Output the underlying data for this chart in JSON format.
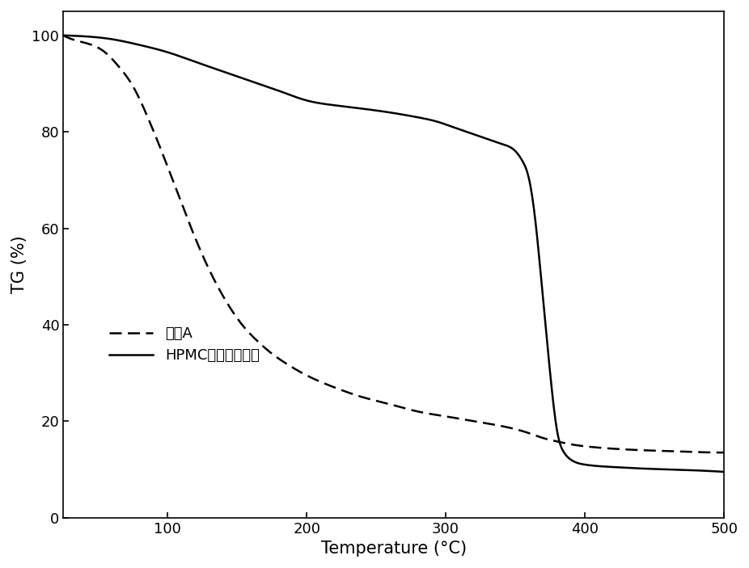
{
  "title": "",
  "xlabel": "Temperature (°C)",
  "ylabel": "TG (%)",
  "xlim": [
    25,
    500
  ],
  "ylim": [
    0,
    105
  ],
  "xticks": [
    100,
    200,
    300,
    400,
    500
  ],
  "yticks": [
    0,
    20,
    40,
    60,
    80,
    100
  ],
  "legend_labels": [
    "香精A",
    "HPMC香味缓释薄片"
  ],
  "line_colors": [
    "#000000",
    "#000000"
  ],
  "background_color": "#ffffff",
  "figsize": [
    9.26,
    7.03
  ],
  "dpi": 100,
  "aroma_x": [
    25,
    40,
    55,
    65,
    75,
    85,
    95,
    105,
    115,
    125,
    135,
    145,
    155,
    165,
    175,
    185,
    200,
    220,
    240,
    260,
    280,
    300,
    320,
    340,
    360,
    370,
    380,
    390,
    400,
    420,
    440,
    460,
    480,
    500
  ],
  "aroma_y": [
    100.0,
    98.5,
    96.5,
    93.5,
    89.5,
    83.5,
    76.5,
    69.0,
    61.5,
    54.5,
    48.5,
    43.5,
    39.5,
    36.5,
    34.0,
    32.0,
    29.5,
    27.0,
    25.0,
    23.5,
    22.0,
    21.0,
    20.0,
    19.0,
    17.5,
    16.5,
    15.8,
    15.2,
    14.8,
    14.3,
    14.0,
    13.8,
    13.6,
    13.5
  ],
  "hpmc_x": [
    25,
    40,
    60,
    80,
    100,
    120,
    140,
    160,
    180,
    200,
    220,
    240,
    260,
    280,
    295,
    305,
    315,
    320,
    325,
    330,
    335,
    340,
    345,
    350,
    355,
    360,
    365,
    370,
    375,
    380,
    385,
    390,
    400,
    420,
    440,
    460,
    480,
    500
  ],
  "hpmc_y": [
    100.0,
    99.8,
    99.2,
    98.0,
    96.5,
    94.5,
    92.5,
    90.5,
    88.5,
    86.5,
    85.5,
    84.8,
    84.0,
    83.0,
    82.0,
    81.0,
    80.0,
    79.5,
    79.0,
    78.5,
    78.0,
    77.5,
    77.0,
    76.0,
    74.0,
    70.0,
    60.0,
    45.0,
    30.0,
    18.0,
    13.5,
    12.0,
    11.0,
    10.5,
    10.2,
    10.0,
    9.8,
    9.5
  ]
}
